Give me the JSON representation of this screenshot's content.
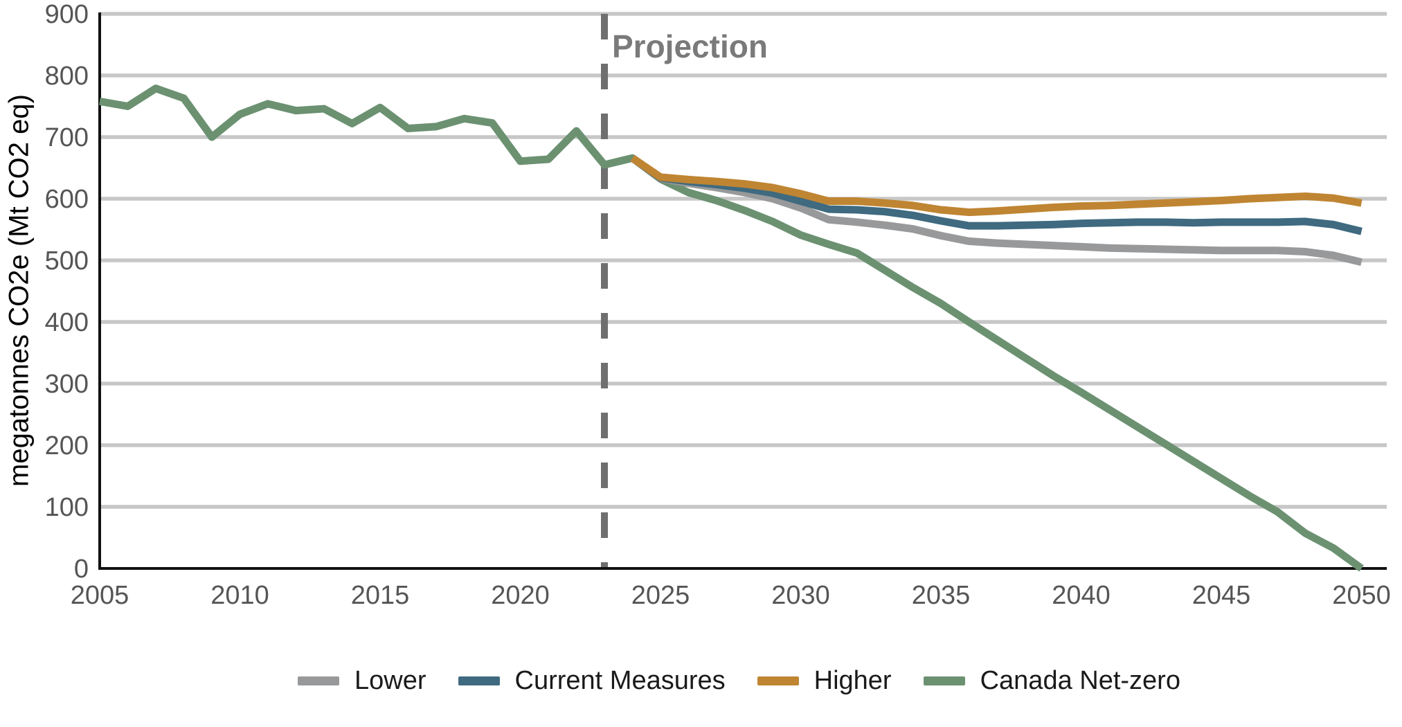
{
  "chart_data": {
    "type": "line",
    "title": "",
    "xlabel": "",
    "ylabel": "megatonnes CO2e (Mt CO2 eq)",
    "xlim": [
      2005,
      2050
    ],
    "ylim": [
      0,
      900
    ],
    "x_ticks": [
      2005,
      2010,
      2015,
      2020,
      2025,
      2030,
      2035,
      2040,
      2045,
      2050
    ],
    "y_ticks": [
      0,
      100,
      200,
      300,
      400,
      500,
      600,
      700,
      800,
      900
    ],
    "grid": "horizontal",
    "legend_position": "bottom",
    "annotation": {
      "label": "Projection",
      "x": 2023,
      "style": "dashed-vertical-line"
    },
    "colors": {
      "grid": "#c7c7c7",
      "axis": "#111111",
      "dashed_line": "#6f6f6f",
      "tick_text": "#555555",
      "projection_text": "#7a7a7a"
    },
    "series": [
      {
        "name": "Canada Net-zero",
        "key": "canada-net-zero",
        "color": "#6b9171",
        "start_year": 2005,
        "values": [
          758,
          750,
          779,
          763,
          700,
          737,
          754,
          743,
          746,
          722,
          748,
          714,
          717,
          730,
          723,
          661,
          664,
          710,
          655,
          666,
          632,
          610,
          597,
          581,
          563,
          541,
          526,
          512,
          484,
          456,
          430,
          400,
          371,
          342,
          313,
          286,
          258,
          230,
          202,
          174,
          146,
          118,
          92,
          57,
          33,
          0
        ]
      },
      {
        "name": "Lower",
        "key": "lower",
        "color": "#98999a",
        "start_year": 2024,
        "values": [
          666,
          633,
          625,
          618,
          610,
          600,
          585,
          566,
          562,
          557,
          551,
          540,
          531,
          528,
          526,
          524,
          522,
          520,
          519,
          518,
          517,
          516,
          516,
          516,
          514,
          508,
          497
        ]
      },
      {
        "name": "Current Measures",
        "key": "current-measures",
        "color": "#3f6a80",
        "start_year": 2024,
        "values": [
          666,
          634,
          628,
          623,
          617,
          609,
          596,
          583,
          582,
          579,
          573,
          564,
          556,
          556,
          557,
          558,
          560,
          561,
          562,
          562,
          561,
          562,
          562,
          562,
          563,
          558,
          547
        ]
      },
      {
        "name": "Higher",
        "key": "higher",
        "color": "#bf8532",
        "start_year": 2024,
        "values": [
          666,
          635,
          631,
          628,
          624,
          618,
          608,
          596,
          596,
          593,
          589,
          582,
          578,
          580,
          583,
          586,
          588,
          589,
          591,
          593,
          595,
          597,
          600,
          602,
          604,
          601,
          593
        ]
      }
    ],
    "legend": [
      "Lower",
      "Current Measures",
      "Higher",
      "Canada Net-zero"
    ]
  }
}
